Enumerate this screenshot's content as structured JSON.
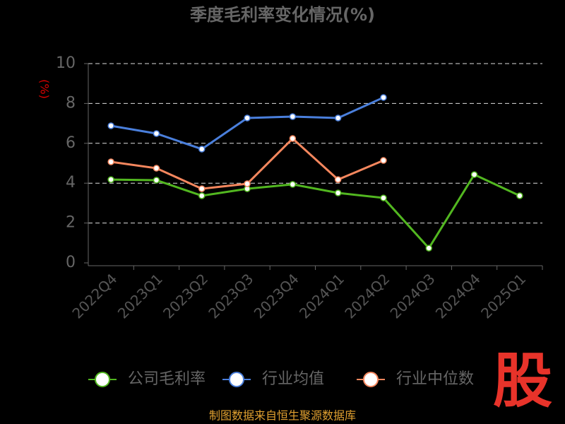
{
  "chart_data": {
    "type": "line",
    "title": "季度毛利率变化情况(%)",
    "y_label": "(%)",
    "categories": [
      "2022Q4",
      "2023Q1",
      "2023Q2",
      "2023Q3",
      "2023Q4",
      "2024Q1",
      "2024Q2",
      "2024Q3",
      "2024Q4",
      "2025Q1"
    ],
    "series": [
      {
        "name": "公司毛利率",
        "color": "#52b720",
        "values": [
          4.18,
          4.15,
          3.37,
          3.72,
          3.94,
          3.51,
          3.26,
          0.74,
          4.43,
          3.37
        ]
      },
      {
        "name": "行业均值",
        "color": "#4a7fdc",
        "values": [
          6.88,
          6.49,
          5.71,
          7.27,
          7.34,
          7.27,
          8.3,
          null,
          null,
          null
        ]
      },
      {
        "name": "行业中位数",
        "color": "#f5875e",
        "values": [
          5.07,
          4.75,
          3.72,
          3.97,
          6.24,
          4.18,
          5.14,
          null,
          null,
          null
        ]
      }
    ],
    "ylim": [
      0,
      10
    ],
    "yticks": [
      0,
      2,
      4,
      6,
      8,
      10
    ],
    "grid": true,
    "source": "制图数据来自恒生聚源数据库",
    "logo": "股"
  }
}
